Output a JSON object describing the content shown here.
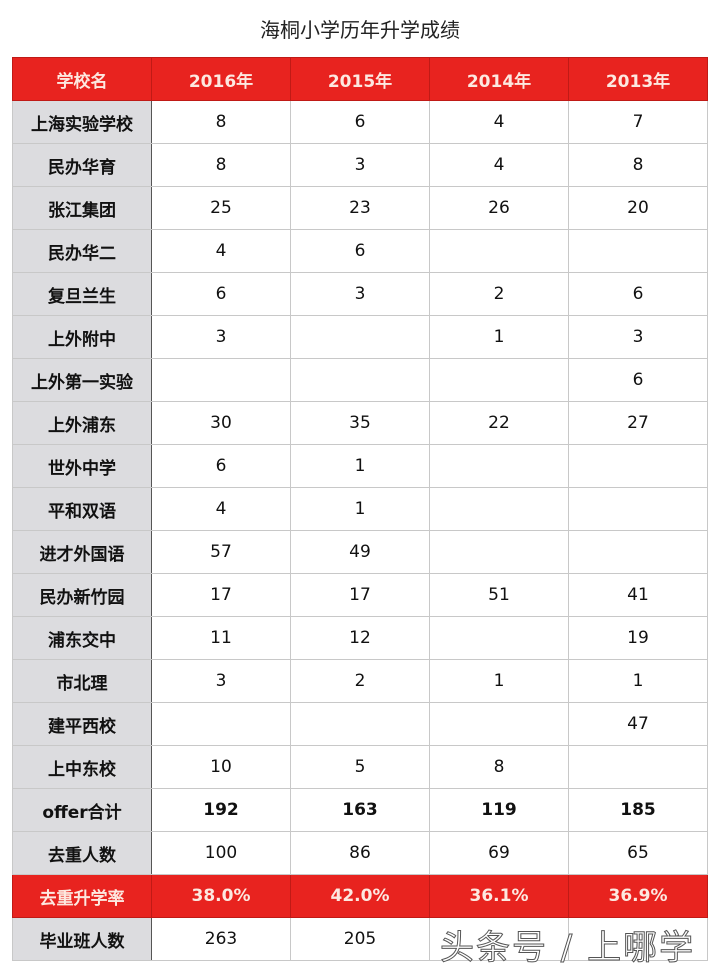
{
  "title": "海桐小学历年升学成绩",
  "headers": [
    "学校名",
    "2016年",
    "2015年",
    "2014年",
    "2013年"
  ],
  "rows": [
    [
      "上海实验学校",
      "8",
      "6",
      "4",
      "7"
    ],
    [
      "民办华育",
      "8",
      "3",
      "4",
      "8"
    ],
    [
      "张江集团",
      "25",
      "23",
      "26",
      "20"
    ],
    [
      "民办华二",
      "4",
      "6",
      "",
      ""
    ],
    [
      "复旦兰生",
      "6",
      "3",
      "2",
      "6"
    ],
    [
      "上外附中",
      "3",
      "",
      "1",
      "3"
    ],
    [
      "上外第一实验",
      "",
      "",
      "",
      "6"
    ],
    [
      "上外浦东",
      "30",
      "35",
      "22",
      "27"
    ],
    [
      "世外中学",
      "6",
      "1",
      "",
      ""
    ],
    [
      "平和双语",
      "4",
      "1",
      "",
      ""
    ],
    [
      "进才外国语",
      "57",
      "49",
      "",
      ""
    ],
    [
      "民办新竹园",
      "17",
      "17",
      "51",
      "41"
    ],
    [
      "浦东交中",
      "11",
      "12",
      "",
      "19"
    ],
    [
      "市北理",
      "3",
      "2",
      "1",
      "1"
    ],
    [
      "建平西校",
      "",
      "",
      "",
      "47"
    ],
    [
      "上中东校",
      "10",
      "5",
      "8",
      ""
    ],
    [
      "offer合计",
      "192",
      "163",
      "119",
      "185"
    ],
    [
      "去重人数",
      "100",
      "86",
      "69",
      "65"
    ],
    [
      "去重升学率",
      "38.0%",
      "42.0%",
      "36.1%",
      "36.9%"
    ],
    [
      "毕业班人数",
      "263",
      "205",
      "",
      ""
    ]
  ],
  "watermark": "头条号 / 上哪学",
  "colors": {
    "header_red": "#e8231f",
    "name_column_gray": "#dcdcdf"
  }
}
